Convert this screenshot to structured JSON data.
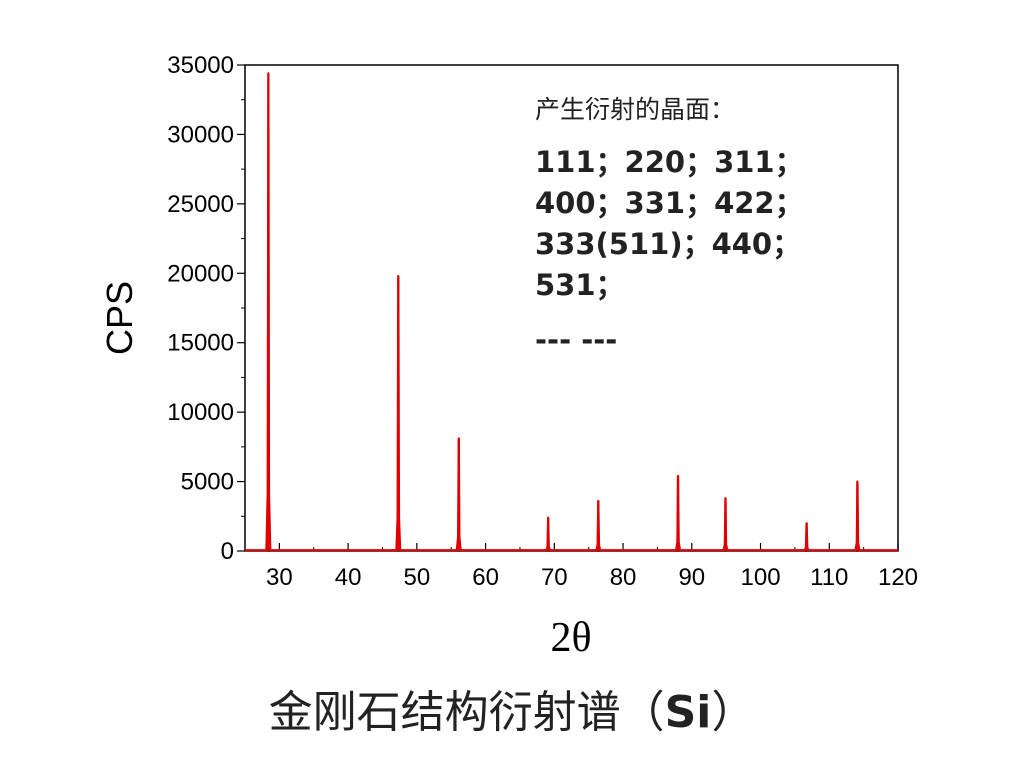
{
  "chart_data": {
    "type": "line",
    "xlabel": "2θ",
    "ylabel": "CPS",
    "xlim": [
      25,
      120
    ],
    "ylim": [
      0,
      35000
    ],
    "x_ticks": [
      "30",
      "40",
      "50",
      "60",
      "70",
      "80",
      "90",
      "100",
      "110",
      "120"
    ],
    "y_ticks": [
      "0",
      "5000",
      "10000",
      "15000",
      "20000",
      "25000",
      "30000",
      "35000"
    ],
    "grid": false,
    "series_color": "#e00000",
    "peaks": [
      {
        "x": 28.4,
        "y": 34400
      },
      {
        "x": 47.3,
        "y": 19800
      },
      {
        "x": 56.1,
        "y": 8100
      },
      {
        "x": 69.1,
        "y": 2400
      },
      {
        "x": 76.4,
        "y": 3600
      },
      {
        "x": 88.0,
        "y": 5400
      },
      {
        "x": 94.9,
        "y": 3800
      },
      {
        "x": 106.7,
        "y": 2000
      },
      {
        "x": 114.1,
        "y": 5000
      }
    ]
  },
  "annotation": {
    "heading": "产生衍射的晶面：",
    "lines": [
      "111；220；311；",
      "400；331；422；",
      "333(511)；440；",
      "531；"
    ],
    "ellipsis": "--- ---"
  },
  "caption": {
    "prefix": "金刚石结构衍射谱（",
    "symbol": "Si",
    "suffix": "）"
  }
}
